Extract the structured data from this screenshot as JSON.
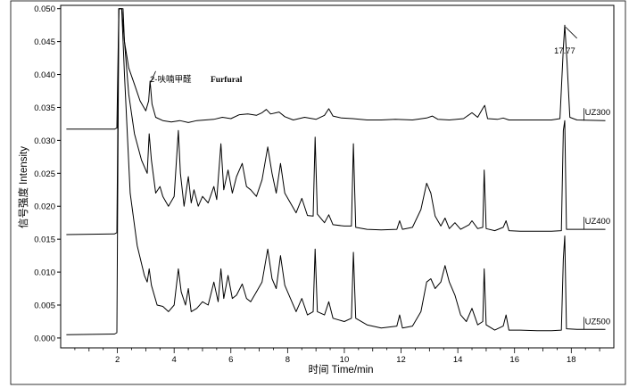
{
  "chart_data": {
    "type": "line",
    "title": "",
    "xlabel": "时间 Time/min",
    "ylabel": "信号强度 Intensity",
    "xlim": [
      0,
      19.5
    ],
    "ylim": [
      -0.0015,
      0.0505
    ],
    "x_ticks": [
      2,
      4,
      6,
      8,
      10,
      12,
      14,
      16,
      18
    ],
    "x_tick_labels": [
      "2",
      "4",
      "6",
      "8",
      "10",
      "12",
      "14",
      "16",
      "18"
    ],
    "y_ticks": [
      0.0,
      0.005,
      0.01,
      0.015,
      0.02,
      0.025,
      0.03,
      0.035,
      0.04,
      0.045,
      0.05
    ],
    "y_tick_labels": [
      "0.000",
      "0.005",
      "0.010",
      "0.015",
      "0.020",
      "0.025",
      "0.030",
      "0.035",
      "0.040",
      "0.045",
      "0.050"
    ],
    "grid": false,
    "annotations": {
      "furfural_cn": "2-呋喃甲醛",
      "furfural_en": "Furfural",
      "peak_time": "17.77"
    },
    "series": [
      {
        "name": "UZ300",
        "color": "#000000",
        "points": [
          [
            0.2,
            0.0317
          ],
          [
            1.9,
            0.0317
          ],
          [
            1.98,
            0.0319
          ],
          [
            2.05,
            0.05
          ],
          [
            2.2,
            0.05
          ],
          [
            2.25,
            0.045
          ],
          [
            2.4,
            0.041
          ],
          [
            2.6,
            0.0385
          ],
          [
            2.8,
            0.036
          ],
          [
            3.0,
            0.0345
          ],
          [
            3.1,
            0.036
          ],
          [
            3.15,
            0.039
          ],
          [
            3.22,
            0.0355
          ],
          [
            3.35,
            0.0335
          ],
          [
            3.6,
            0.033
          ],
          [
            3.9,
            0.0328
          ],
          [
            4.2,
            0.033
          ],
          [
            4.5,
            0.0327
          ],
          [
            4.8,
            0.033
          ],
          [
            5.1,
            0.0331
          ],
          [
            5.4,
            0.0332
          ],
          [
            5.7,
            0.0335
          ],
          [
            6.0,
            0.0333
          ],
          [
            6.3,
            0.0339
          ],
          [
            6.6,
            0.034
          ],
          [
            6.9,
            0.0338
          ],
          [
            7.1,
            0.0342
          ],
          [
            7.25,
            0.0347
          ],
          [
            7.4,
            0.034
          ],
          [
            7.7,
            0.0343
          ],
          [
            7.9,
            0.0336
          ],
          [
            8.2,
            0.0331
          ],
          [
            8.6,
            0.0335
          ],
          [
            9.0,
            0.0332
          ],
          [
            9.3,
            0.0338
          ],
          [
            9.45,
            0.0348
          ],
          [
            9.6,
            0.0337
          ],
          [
            9.9,
            0.0334
          ],
          [
            10.3,
            0.0333
          ],
          [
            10.8,
            0.0331
          ],
          [
            11.3,
            0.0331
          ],
          [
            11.8,
            0.0332
          ],
          [
            12.4,
            0.0331
          ],
          [
            12.9,
            0.0334
          ],
          [
            13.1,
            0.0337
          ],
          [
            13.3,
            0.0332
          ],
          [
            13.7,
            0.0331
          ],
          [
            14.2,
            0.0333
          ],
          [
            14.5,
            0.0342
          ],
          [
            14.7,
            0.0335
          ],
          [
            14.9,
            0.035
          ],
          [
            14.95,
            0.0353
          ],
          [
            15.05,
            0.0333
          ],
          [
            15.4,
            0.0332
          ],
          [
            15.6,
            0.0334
          ],
          [
            15.8,
            0.0331
          ],
          [
            16.2,
            0.0331
          ],
          [
            16.8,
            0.0331
          ],
          [
            17.3,
            0.0331
          ],
          [
            17.6,
            0.0333
          ],
          [
            17.72,
            0.044
          ],
          [
            17.77,
            0.0475
          ],
          [
            17.85,
            0.042
          ],
          [
            17.95,
            0.0335
          ],
          [
            18.2,
            0.0331
          ],
          [
            19.2,
            0.033
          ]
        ]
      },
      {
        "name": "UZ400",
        "color": "#000000",
        "points": [
          [
            0.2,
            0.0157
          ],
          [
            1.9,
            0.0158
          ],
          [
            1.98,
            0.016
          ],
          [
            2.05,
            0.05
          ],
          [
            2.15,
            0.05
          ],
          [
            2.25,
            0.045
          ],
          [
            2.4,
            0.037
          ],
          [
            2.6,
            0.031
          ],
          [
            2.85,
            0.027
          ],
          [
            3.05,
            0.025
          ],
          [
            3.12,
            0.031
          ],
          [
            3.2,
            0.027
          ],
          [
            3.35,
            0.022
          ],
          [
            3.5,
            0.023
          ],
          [
            3.6,
            0.0215
          ],
          [
            3.8,
            0.02
          ],
          [
            4.0,
            0.0215
          ],
          [
            4.15,
            0.0315
          ],
          [
            4.22,
            0.025
          ],
          [
            4.35,
            0.02
          ],
          [
            4.5,
            0.0245
          ],
          [
            4.6,
            0.0205
          ],
          [
            4.7,
            0.0225
          ],
          [
            4.85,
            0.02
          ],
          [
            5.0,
            0.0215
          ],
          [
            5.2,
            0.0205
          ],
          [
            5.4,
            0.023
          ],
          [
            5.5,
            0.021
          ],
          [
            5.65,
            0.0295
          ],
          [
            5.75,
            0.0225
          ],
          [
            5.9,
            0.0255
          ],
          [
            6.05,
            0.022
          ],
          [
            6.2,
            0.0245
          ],
          [
            6.4,
            0.0265
          ],
          [
            6.55,
            0.023
          ],
          [
            6.7,
            0.0225
          ],
          [
            6.9,
            0.0215
          ],
          [
            7.1,
            0.024
          ],
          [
            7.3,
            0.029
          ],
          [
            7.45,
            0.025
          ],
          [
            7.6,
            0.022
          ],
          [
            7.75,
            0.0265
          ],
          [
            7.9,
            0.022
          ],
          [
            8.1,
            0.0205
          ],
          [
            8.3,
            0.019
          ],
          [
            8.5,
            0.0212
          ],
          [
            8.7,
            0.0186
          ],
          [
            8.9,
            0.0185
          ],
          [
            8.97,
            0.0305
          ],
          [
            9.05,
            0.0188
          ],
          [
            9.3,
            0.0175
          ],
          [
            9.45,
            0.0187
          ],
          [
            9.6,
            0.0172
          ],
          [
            10.0,
            0.017
          ],
          [
            10.25,
            0.017
          ],
          [
            10.32,
            0.0295
          ],
          [
            10.4,
            0.0168
          ],
          [
            10.8,
            0.0165
          ],
          [
            11.3,
            0.0164
          ],
          [
            11.85,
            0.0165
          ],
          [
            11.95,
            0.0178
          ],
          [
            12.05,
            0.0165
          ],
          [
            12.4,
            0.0168
          ],
          [
            12.7,
            0.0195
          ],
          [
            12.9,
            0.0235
          ],
          [
            13.05,
            0.022
          ],
          [
            13.2,
            0.0185
          ],
          [
            13.4,
            0.017
          ],
          [
            13.55,
            0.0182
          ],
          [
            13.7,
            0.0166
          ],
          [
            13.9,
            0.0175
          ],
          [
            14.1,
            0.0165
          ],
          [
            14.4,
            0.0172
          ],
          [
            14.5,
            0.0178
          ],
          [
            14.7,
            0.0166
          ],
          [
            14.88,
            0.0168
          ],
          [
            14.93,
            0.0255
          ],
          [
            15.0,
            0.0166
          ],
          [
            15.3,
            0.0163
          ],
          [
            15.6,
            0.0168
          ],
          [
            15.7,
            0.0178
          ],
          [
            15.8,
            0.0163
          ],
          [
            16.2,
            0.0162
          ],
          [
            16.8,
            0.0162
          ],
          [
            17.3,
            0.0162
          ],
          [
            17.65,
            0.0163
          ],
          [
            17.72,
            0.0315
          ],
          [
            17.77,
            0.033
          ],
          [
            17.83,
            0.0165
          ],
          [
            18.2,
            0.0165
          ],
          [
            19.2,
            0.0165
          ]
        ]
      },
      {
        "name": "UZ500",
        "color": "#000000",
        "points": [
          [
            0.2,
            0.0005
          ],
          [
            1.9,
            0.0006
          ],
          [
            1.98,
            0.0008
          ],
          [
            2.05,
            0.05
          ],
          [
            2.15,
            0.05
          ],
          [
            2.25,
            0.04
          ],
          [
            2.45,
            0.022
          ],
          [
            2.7,
            0.014
          ],
          [
            2.95,
            0.0095
          ],
          [
            3.05,
            0.0085
          ],
          [
            3.12,
            0.0105
          ],
          [
            3.2,
            0.008
          ],
          [
            3.4,
            0.005
          ],
          [
            3.6,
            0.0048
          ],
          [
            3.8,
            0.004
          ],
          [
            4.0,
            0.005
          ],
          [
            4.15,
            0.0105
          ],
          [
            4.25,
            0.007
          ],
          [
            4.4,
            0.005
          ],
          [
            4.5,
            0.0075
          ],
          [
            4.6,
            0.004
          ],
          [
            4.8,
            0.0045
          ],
          [
            5.0,
            0.0055
          ],
          [
            5.2,
            0.005
          ],
          [
            5.4,
            0.0085
          ],
          [
            5.55,
            0.0055
          ],
          [
            5.65,
            0.0105
          ],
          [
            5.75,
            0.006
          ],
          [
            5.9,
            0.0095
          ],
          [
            6.05,
            0.006
          ],
          [
            6.2,
            0.0065
          ],
          [
            6.4,
            0.0082
          ],
          [
            6.55,
            0.006
          ],
          [
            6.7,
            0.0055
          ],
          [
            6.9,
            0.007
          ],
          [
            7.1,
            0.0085
          ],
          [
            7.3,
            0.0135
          ],
          [
            7.45,
            0.009
          ],
          [
            7.6,
            0.0075
          ],
          [
            7.75,
            0.0125
          ],
          [
            7.9,
            0.008
          ],
          [
            8.1,
            0.006
          ],
          [
            8.3,
            0.004
          ],
          [
            8.5,
            0.006
          ],
          [
            8.7,
            0.0035
          ],
          [
            8.9,
            0.004
          ],
          [
            8.97,
            0.0135
          ],
          [
            9.05,
            0.004
          ],
          [
            9.3,
            0.0035
          ],
          [
            9.45,
            0.0055
          ],
          [
            9.6,
            0.003
          ],
          [
            10.0,
            0.0025
          ],
          [
            10.25,
            0.003
          ],
          [
            10.32,
            0.013
          ],
          [
            10.4,
            0.003
          ],
          [
            10.8,
            0.002
          ],
          [
            11.3,
            0.0015
          ],
          [
            11.85,
            0.0018
          ],
          [
            11.95,
            0.0035
          ],
          [
            12.05,
            0.0015
          ],
          [
            12.4,
            0.0018
          ],
          [
            12.7,
            0.004
          ],
          [
            12.9,
            0.0085
          ],
          [
            13.05,
            0.009
          ],
          [
            13.2,
            0.0075
          ],
          [
            13.4,
            0.0085
          ],
          [
            13.55,
            0.011
          ],
          [
            13.7,
            0.0085
          ],
          [
            13.9,
            0.0065
          ],
          [
            14.1,
            0.0035
          ],
          [
            14.3,
            0.0025
          ],
          [
            14.5,
            0.0045
          ],
          [
            14.7,
            0.002
          ],
          [
            14.88,
            0.0025
          ],
          [
            14.93,
            0.0105
          ],
          [
            15.0,
            0.002
          ],
          [
            15.3,
            0.0012
          ],
          [
            15.6,
            0.0018
          ],
          [
            15.7,
            0.0035
          ],
          [
            15.8,
            0.0012
          ],
          [
            16.2,
            0.0012
          ],
          [
            16.8,
            0.0011
          ],
          [
            17.3,
            0.0011
          ],
          [
            17.65,
            0.0012
          ],
          [
            17.72,
            0.012
          ],
          [
            17.77,
            0.0155
          ],
          [
            17.83,
            0.0014
          ],
          [
            18.2,
            0.0013
          ],
          [
            19.2,
            0.0013
          ]
        ]
      }
    ]
  }
}
